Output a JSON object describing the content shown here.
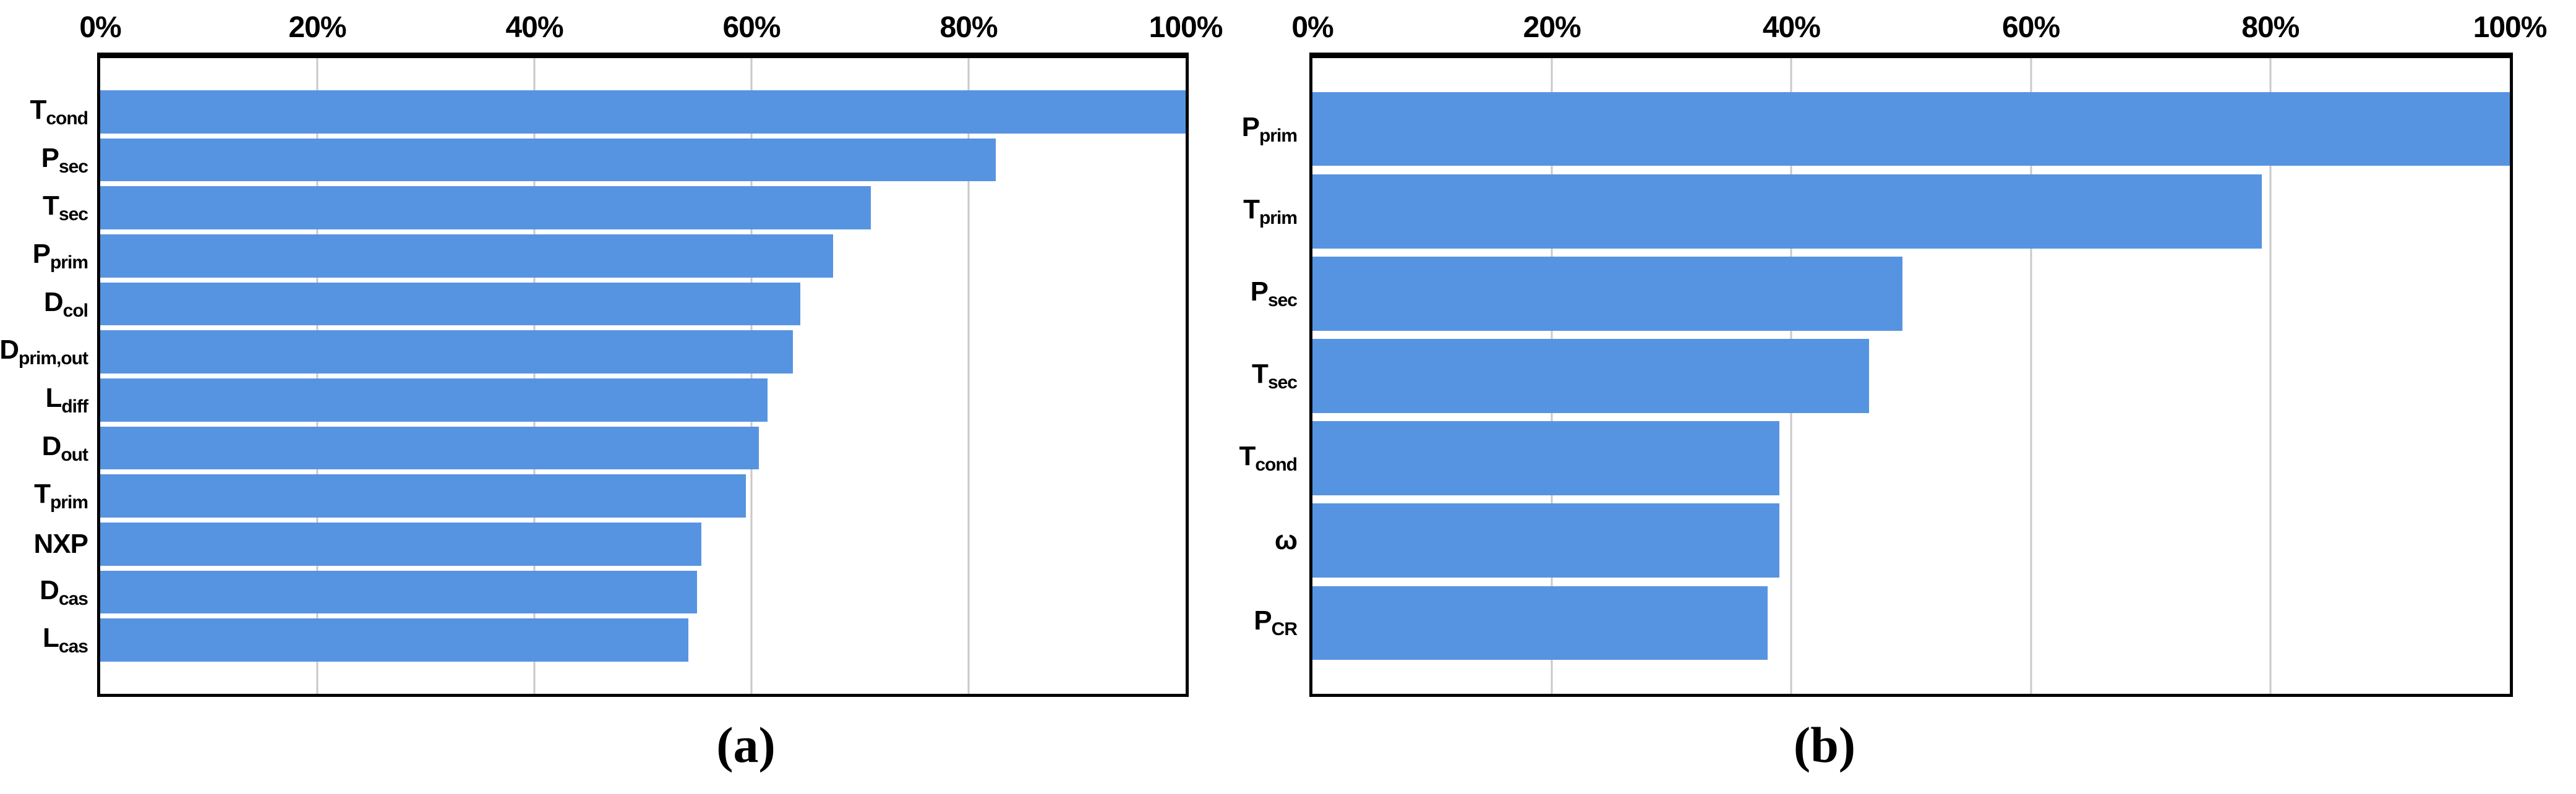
{
  "figure": {
    "background": "#FFFFFF",
    "panels": [
      {
        "caption": "(a)",
        "x_ticks": [
          "0%",
          "20%",
          "40%",
          "60%",
          "80%",
          "100%"
        ],
        "categories_rich": [
          {
            "main": "T",
            "sub": "cond"
          },
          {
            "main": "P",
            "sub": "sec"
          },
          {
            "main": "T",
            "sub": "sec"
          },
          {
            "main": "P",
            "sub": "prim"
          },
          {
            "main": "D",
            "sub": "col"
          },
          {
            "main": "D",
            "sub": "prim,out"
          },
          {
            "main": "L",
            "sub": "diff"
          },
          {
            "main": "D",
            "sub": "out"
          },
          {
            "main": "T",
            "sub": "prim"
          },
          {
            "main": "NXP",
            "sub": ""
          },
          {
            "main": "D",
            "sub": "cas"
          },
          {
            "main": "L",
            "sub": "cas"
          }
        ]
      },
      {
        "caption": "(b)",
        "x_ticks": [
          "0%",
          "20%",
          "40%",
          "60%",
          "80%",
          "100%"
        ],
        "categories_rich": [
          {
            "main": "P",
            "sub": "prim"
          },
          {
            "main": "T",
            "sub": "prim"
          },
          {
            "main": "P",
            "sub": "sec"
          },
          {
            "main": "T",
            "sub": "sec"
          },
          {
            "main": "T",
            "sub": "cond"
          },
          {
            "main": "ω",
            "sub": ""
          },
          {
            "main": "P",
            "sub": "CR"
          }
        ]
      }
    ]
  },
  "colors": {
    "bar": "#5694E1",
    "gridline": "#C9C9C9",
    "axis": "#000000",
    "text": "#000000"
  },
  "chart_data": [
    {
      "type": "bar",
      "orientation": "horizontal",
      "title": "",
      "caption": "(a)",
      "xlabel": "",
      "ylabel": "",
      "xlim": [
        0,
        100
      ],
      "x_tick_labels": [
        "0%",
        "20%",
        "40%",
        "60%",
        "80%",
        "100%"
      ],
      "grid": true,
      "tick_position": "top",
      "categories": [
        "T_cond",
        "P_sec",
        "T_sec",
        "P_prim",
        "D_col",
        "D_prim,out",
        "L_diff",
        "D_out",
        "T_prim",
        "NXP",
        "D_cas",
        "L_cas"
      ],
      "values": [
        100,
        82.5,
        71,
        67.5,
        64.5,
        63.8,
        61.5,
        60.7,
        59.5,
        55.4,
        55,
        54.2
      ]
    },
    {
      "type": "bar",
      "orientation": "horizontal",
      "title": "",
      "caption": "(b)",
      "xlabel": "",
      "ylabel": "",
      "xlim": [
        0,
        100
      ],
      "x_tick_labels": [
        "0%",
        "20%",
        "40%",
        "60%",
        "80%",
        "100%"
      ],
      "grid": true,
      "tick_position": "top",
      "categories": [
        "P_prim",
        "T_prim",
        "P_sec",
        "T_sec",
        "T_cond",
        "ω",
        "P_CR"
      ],
      "values": [
        100,
        79.3,
        49.3,
        46.5,
        39,
        39,
        38
      ]
    }
  ]
}
